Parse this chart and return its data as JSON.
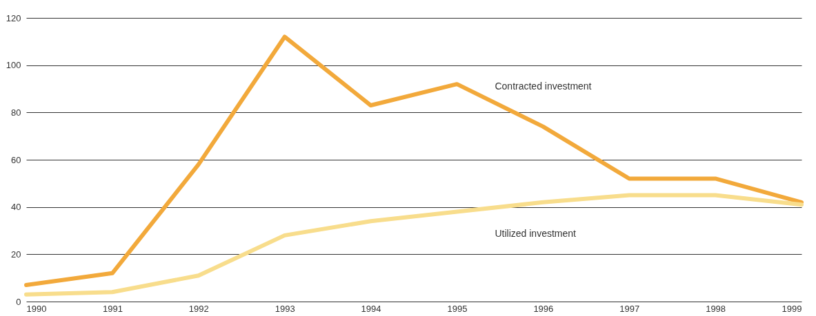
{
  "chart_data": {
    "type": "line",
    "x": [
      1990,
      1991,
      1992,
      1993,
      1994,
      1995,
      1996,
      1997,
      1998,
      1999
    ],
    "series": [
      {
        "name": "Contracted investment",
        "color": "#f2a93b",
        "values": [
          7,
          12,
          58,
          112,
          83,
          92,
          74,
          52,
          52,
          42
        ]
      },
      {
        "name": "Utilized investment",
        "color": "#f8dd8c",
        "values": [
          3,
          4,
          11,
          28,
          34,
          38,
          42,
          45,
          45,
          41
        ]
      }
    ],
    "xlim": [
      1990,
      1999
    ],
    "xticks": [
      1990,
      1991,
      1992,
      1993,
      1994,
      1995,
      1996,
      1997,
      1998,
      1999
    ],
    "ylim": [
      0,
      120
    ],
    "yticks": [
      0,
      20,
      40,
      60,
      80,
      100,
      120
    ],
    "grid": "y"
  }
}
